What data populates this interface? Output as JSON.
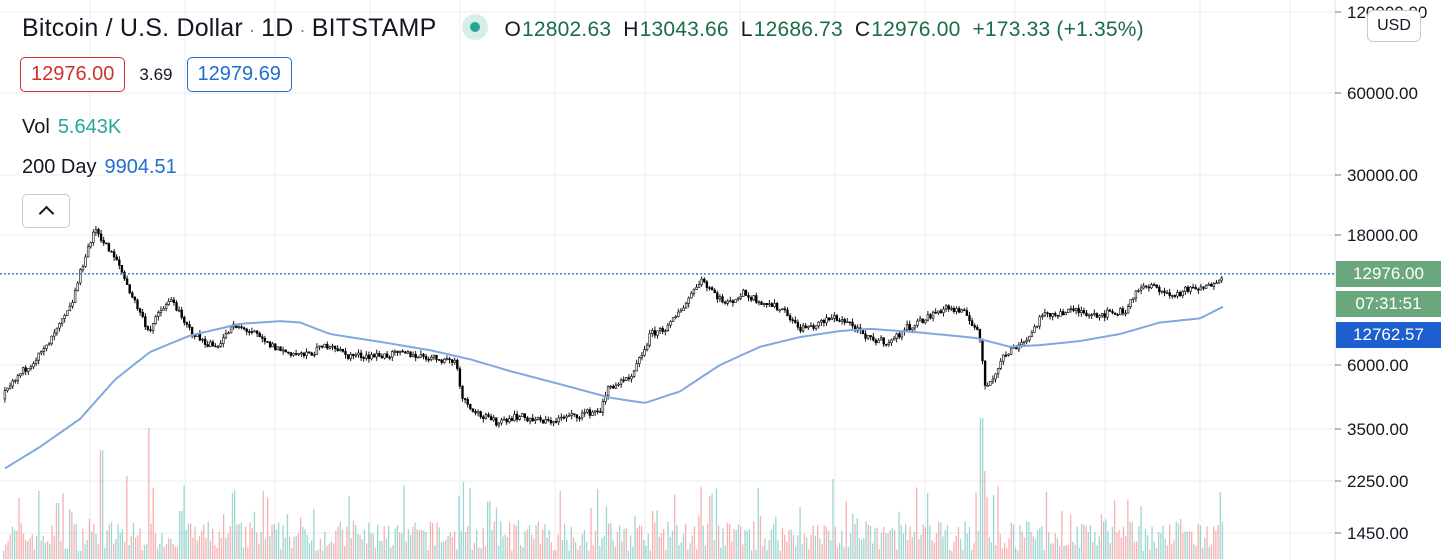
{
  "legend": {
    "symbol": "Bitcoin / U.S. Dollar",
    "interval": "1D",
    "exchange": "BITSTAMP",
    "ohlc": {
      "open_label": "O",
      "open": "12802.63",
      "high_label": "H",
      "high": "13043.66",
      "low_label": "L",
      "low": "12686.73",
      "close_label": "C",
      "close": "12976.00",
      "change": "+173.33 (+1.35%)"
    },
    "bid": "12976.00",
    "spread": "3.69",
    "ask": "12979.69",
    "volume_label": "Vol",
    "volume": "5.643K",
    "ma_label": "200 Day",
    "ma_value": "9904.51"
  },
  "currency_button": "USD",
  "price_tags": {
    "last_price": "12976.00",
    "countdown": "07:31:51",
    "ma_price": "12762.57"
  },
  "colors": {
    "up": "#26a69a",
    "down": "#ef5350",
    "candle": "#000000",
    "ma_line": "#7fa9e0",
    "last_price_tag": "#6aa77d",
    "ma_tag": "#1e5fd0",
    "price_line": "#1e5fd0"
  },
  "chart_data": {
    "type": "candlestick",
    "y_scale": "log",
    "y_ticks": [
      "120000.00",
      "60000.00",
      "30000.00",
      "18000.00",
      "6000.00",
      "3500.00",
      "2250.00",
      "1450.00"
    ],
    "y_tick_values": [
      120000,
      60000,
      30000,
      18000,
      6000,
      3500,
      2250,
      1450
    ],
    "grid": true,
    "last_price": 12976.0,
    "price_path": [
      [
        0,
        4500
      ],
      [
        20,
        5600
      ],
      [
        45,
        6900
      ],
      [
        70,
        9800
      ],
      [
        85,
        15500
      ],
      [
        95,
        19000
      ],
      [
        105,
        16500
      ],
      [
        118,
        14000
      ],
      [
        130,
        11000
      ],
      [
        148,
        8000
      ],
      [
        160,
        9500
      ],
      [
        172,
        10500
      ],
      [
        182,
        8600
      ],
      [
        200,
        7400
      ],
      [
        215,
        7000
      ],
      [
        232,
        8300
      ],
      [
        250,
        8000
      ],
      [
        265,
        7200
      ],
      [
        285,
        6700
      ],
      [
        305,
        6500
      ],
      [
        330,
        7200
      ],
      [
        345,
        6500
      ],
      [
        365,
        6500
      ],
      [
        380,
        6500
      ],
      [
        405,
        6600
      ],
      [
        430,
        6400
      ],
      [
        455,
        6200
      ],
      [
        462,
        4500
      ],
      [
        480,
        3900
      ],
      [
        495,
        3700
      ],
      [
        515,
        3900
      ],
      [
        545,
        3700
      ],
      [
        565,
        3850
      ],
      [
        600,
        4100
      ],
      [
        608,
        5000
      ],
      [
        630,
        5300
      ],
      [
        650,
        7800
      ],
      [
        668,
        8300
      ],
      [
        685,
        10200
      ],
      [
        700,
        12500
      ],
      [
        712,
        11200
      ],
      [
        725,
        10000
      ],
      [
        742,
        11000
      ],
      [
        760,
        10300
      ],
      [
        785,
        9500
      ],
      [
        797,
        8200
      ],
      [
        812,
        8300
      ],
      [
        833,
        9000
      ],
      [
        848,
        8600
      ],
      [
        865,
        7500
      ],
      [
        890,
        7300
      ],
      [
        905,
        8200
      ],
      [
        925,
        8900
      ],
      [
        945,
        9800
      ],
      [
        965,
        9200
      ],
      [
        978,
        8000
      ],
      [
        984,
        5000
      ],
      [
        992,
        5400
      ],
      [
        1000,
        6300
      ],
      [
        1012,
        6900
      ],
      [
        1028,
        7600
      ],
      [
        1040,
        9000
      ],
      [
        1055,
        9300
      ],
      [
        1075,
        9500
      ],
      [
        1100,
        9200
      ],
      [
        1125,
        9500
      ],
      [
        1135,
        11300
      ],
      [
        1155,
        11700
      ],
      [
        1170,
        10700
      ],
      [
        1185,
        11300
      ],
      [
        1205,
        11500
      ],
      [
        1222,
        12976
      ]
    ],
    "ma200_path": [
      [
        5,
        2500
      ],
      [
        40,
        3000
      ],
      [
        80,
        3800
      ],
      [
        115,
        5300
      ],
      [
        150,
        6700
      ],
      [
        190,
        7700
      ],
      [
        240,
        8500
      ],
      [
        280,
        8700
      ],
      [
        300,
        8600
      ],
      [
        330,
        7800
      ],
      [
        380,
        7300
      ],
      [
        430,
        6800
      ],
      [
        470,
        6300
      ],
      [
        510,
        5700
      ],
      [
        560,
        5100
      ],
      [
        610,
        4550
      ],
      [
        645,
        4350
      ],
      [
        680,
        4800
      ],
      [
        720,
        6000
      ],
      [
        760,
        7000
      ],
      [
        800,
        7600
      ],
      [
        840,
        8000
      ],
      [
        870,
        8150
      ],
      [
        920,
        7900
      ],
      [
        975,
        7550
      ],
      [
        1010,
        7000
      ],
      [
        1040,
        7100
      ],
      [
        1080,
        7350
      ],
      [
        1120,
        7800
      ],
      [
        1160,
        8600
      ],
      [
        1200,
        8900
      ],
      [
        1225,
        9904.51
      ]
    ],
    "volume_spikes": [
      [
        57,
        0.35
      ],
      [
        101,
        0.68
      ],
      [
        126,
        0.52
      ],
      [
        148,
        0.82
      ],
      [
        180,
        0.3
      ],
      [
        222,
        0.28
      ],
      [
        300,
        0.26
      ],
      [
        352,
        0.24
      ],
      [
        462,
        0.48
      ],
      [
        488,
        0.36
      ],
      [
        606,
        0.33
      ],
      [
        652,
        0.3
      ],
      [
        700,
        0.45
      ],
      [
        760,
        0.27
      ],
      [
        832,
        0.5
      ],
      [
        905,
        0.22
      ],
      [
        981,
        0.88
      ],
      [
        985,
        0.55
      ],
      [
        993,
        0.4
      ],
      [
        1045,
        0.42
      ],
      [
        1062,
        0.3
      ],
      [
        1100,
        0.28
      ],
      [
        1140,
        0.33
      ],
      [
        1181,
        0.25
      ],
      [
        1224,
        0.28
      ]
    ]
  }
}
